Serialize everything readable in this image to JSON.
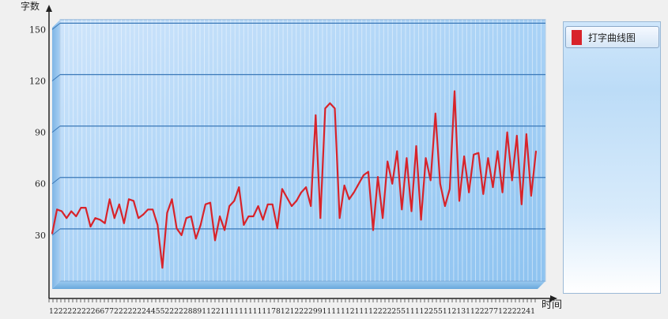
{
  "chart_data": {
    "type": "line",
    "ylabel": "字数",
    "xlabel": "时间",
    "yticks": [
      30,
      60,
      90,
      120,
      150
    ],
    "tick_labels": [
      "30",
      "60",
      "90",
      "120",
      "150"
    ],
    "ylim": [
      0,
      152
    ],
    "x_ticks_text": "122222222266772222222445522222889112211111111111781212222991111112111122222551111225511213112227712222241",
    "grid": true,
    "legend_position": "right",
    "series": [
      {
        "name": "打字曲线图",
        "color": "#d8232a",
        "values": [
          31,
          45,
          44,
          40,
          44,
          41,
          46,
          46,
          35,
          40,
          39,
          37,
          51,
          40,
          48,
          37,
          51,
          50,
          40,
          42,
          45,
          45,
          36,
          11,
          43,
          51,
          34,
          30,
          40,
          41,
          28,
          36,
          48,
          49,
          27,
          41,
          33,
          47,
          50,
          58,
          36,
          41,
          41,
          47,
          39,
          48,
          48,
          34,
          57,
          52,
          47,
          50,
          55,
          58,
          47,
          100,
          40,
          104,
          107,
          104,
          40,
          59,
          51,
          55,
          60,
          65,
          67,
          33,
          64,
          40,
          73,
          60,
          79,
          45,
          75,
          44,
          82,
          39,
          75,
          62,
          101,
          60,
          47,
          57,
          114,
          50,
          76,
          55,
          77,
          78,
          54,
          75,
          58,
          79,
          55,
          90,
          62,
          88,
          48,
          89,
          53,
          79
        ]
      }
    ]
  }
}
